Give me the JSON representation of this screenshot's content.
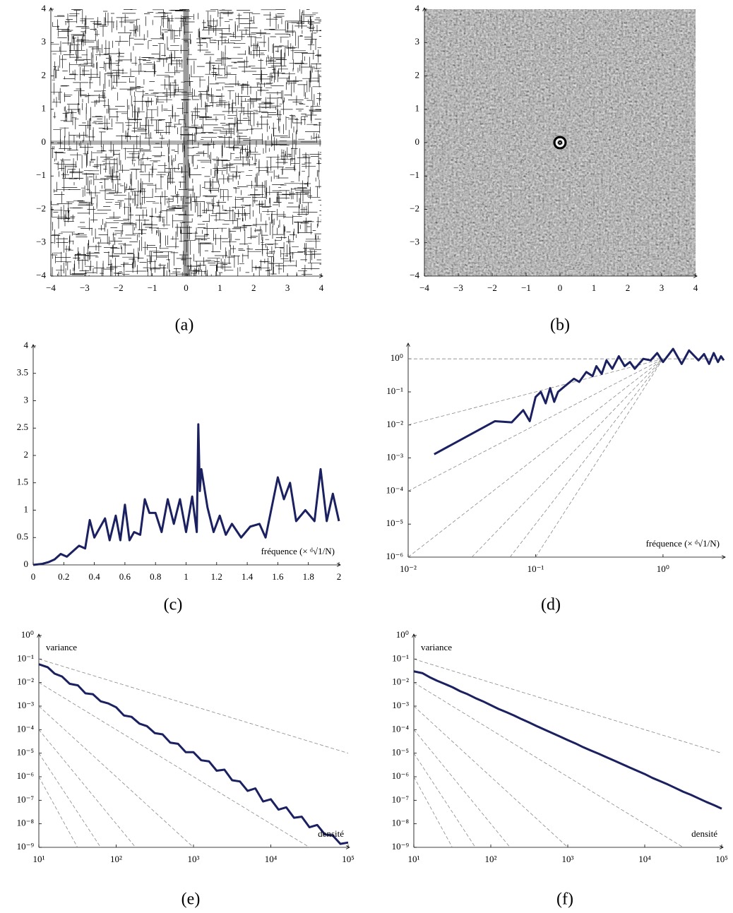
{
  "chart_data": [
    {
      "type": "image",
      "caption": "(a)",
      "pattern": "points",
      "xlim": [
        -4,
        4
      ],
      "ylim": [
        -4,
        4
      ],
      "xticks": [
        {
          "value": -4,
          "label": "−4"
        },
        {
          "value": -3,
          "label": "−3"
        },
        {
          "value": -2,
          "label": "−2"
        },
        {
          "value": -1,
          "label": "−1"
        },
        0,
        1,
        2,
        3,
        4
      ],
      "yticks": [
        {
          "value": -4,
          "label": "−4"
        },
        {
          "value": -3,
          "label": "−3"
        },
        {
          "value": -2,
          "label": "−2"
        },
        {
          "value": -1,
          "label": "−1"
        },
        0,
        1,
        2,
        3,
        4
      ]
    },
    {
      "type": "image",
      "caption": "(b)",
      "pattern": "spectrum",
      "xlim": [
        -4,
        4
      ],
      "ylim": [
        -4,
        4
      ],
      "xticks": [
        {
          "value": -4,
          "label": "−4"
        },
        {
          "value": -3,
          "label": "−3"
        },
        {
          "value": -2,
          "label": "−2"
        },
        {
          "value": -1,
          "label": "−1"
        },
        0,
        1,
        2,
        3,
        4
      ],
      "yticks": [
        {
          "value": -4,
          "label": "−4"
        },
        {
          "value": -3,
          "label": "−3"
        },
        {
          "value": -2,
          "label": "−2"
        },
        {
          "value": -1,
          "label": "−1"
        },
        0,
        1,
        2,
        3,
        4
      ]
    },
    {
      "type": "line",
      "caption": "(c)",
      "x_label": "fréquence (× ᵈ√1/N)",
      "xlim": [
        0,
        2
      ],
      "ylim": [
        0,
        4
      ],
      "xticks": [
        0,
        0.2,
        0.4,
        0.6,
        0.8,
        1,
        1.2,
        1.4,
        1.6,
        1.8,
        2
      ],
      "yticks": [
        0,
        0.5,
        1,
        1.5,
        2,
        2.5,
        3,
        3.5,
        4
      ],
      "series": [
        {
          "color": "#1b2160",
          "x": [
            0,
            0.06,
            0.1,
            0.14,
            0.18,
            0.22,
            0.26,
            0.3,
            0.34,
            0.37,
            0.4,
            0.44,
            0.47,
            0.5,
            0.54,
            0.57,
            0.6,
            0.63,
            0.66,
            0.7,
            0.73,
            0.76,
            0.8,
            0.84,
            0.88,
            0.92,
            0.96,
            1.0,
            1.04,
            1.07,
            1.08,
            1.09,
            1.1,
            1.14,
            1.18,
            1.22,
            1.26,
            1.3,
            1.36,
            1.42,
            1.48,
            1.52,
            1.6,
            1.64,
            1.68,
            1.72,
            1.78,
            1.84,
            1.88,
            1.92,
            1.96,
            2.0
          ],
          "values": [
            0,
            0.02,
            0.05,
            0.1,
            0.2,
            0.15,
            0.25,
            0.35,
            0.3,
            0.82,
            0.5,
            0.7,
            0.85,
            0.45,
            0.9,
            0.45,
            1.1,
            0.45,
            0.6,
            0.55,
            1.2,
            0.95,
            0.95,
            0.6,
            1.2,
            0.75,
            1.2,
            0.6,
            1.25,
            0.6,
            2.57,
            1.35,
            1.75,
            1.05,
            0.6,
            0.9,
            0.55,
            0.75,
            0.5,
            0.7,
            0.75,
            0.5,
            1.6,
            1.2,
            1.5,
            0.8,
            1.0,
            0.8,
            1.75,
            0.8,
            1.3,
            0.8
          ]
        }
      ]
    },
    {
      "type": "line",
      "caption": "(d)",
      "x_label": "fréquence (× ᵈ√1/N)",
      "xscale": "log",
      "yscale": "log",
      "xlim": [
        0.01,
        3
      ],
      "ylim": [
        1e-06,
        2.7
      ],
      "xticks": [
        {
          "value": 0.01,
          "label": "10⁻²"
        },
        {
          "value": 0.1,
          "label": "10⁻¹"
        },
        {
          "value": 1,
          "label": "10⁰"
        }
      ],
      "yticks": [
        {
          "value": 1e-06,
          "label": "10⁻⁶"
        },
        {
          "value": 1e-05,
          "label": "10⁻⁵"
        },
        {
          "value": 0.0001,
          "label": "10⁻⁴"
        },
        {
          "value": 0.001,
          "label": "10⁻³"
        },
        {
          "value": 0.01,
          "label": "10⁻²"
        },
        {
          "value": 0.1,
          "label": "10⁻¹"
        },
        {
          "value": 1,
          "label": "10⁰"
        }
      ],
      "series": [
        {
          "color": "#888888",
          "dashed": true,
          "x": [
            0.01,
            3
          ],
          "values": [
            1,
            1
          ]
        },
        {
          "color": "#888888",
          "dashed": true,
          "x": [
            0.01,
            1
          ],
          "values": [
            0.01,
            1
          ]
        },
        {
          "color": "#888888",
          "dashed": true,
          "x": [
            0.01,
            1
          ],
          "values": [
            0.0001,
            1
          ]
        },
        {
          "color": "#888888",
          "dashed": true,
          "x": [
            0.01,
            1
          ],
          "values": [
            1e-06,
            1
          ]
        },
        {
          "color": "#888888",
          "dashed": true,
          "x": [
            0.0316,
            1
          ],
          "values": [
            1e-06,
            1
          ]
        },
        {
          "color": "#888888",
          "dashed": true,
          "x": [
            0.063,
            1
          ],
          "values": [
            1e-06,
            1
          ]
        },
        {
          "color": "#888888",
          "dashed": true,
          "x": [
            0.1,
            1
          ],
          "values": [
            1e-06,
            1
          ]
        },
        {
          "color": "#1b2160",
          "x": [
            0.016,
            0.048,
            0.065,
            0.08,
            0.09,
            0.1,
            0.11,
            0.12,
            0.13,
            0.14,
            0.15,
            0.17,
            0.2,
            0.22,
            0.25,
            0.28,
            0.3,
            0.33,
            0.36,
            0.4,
            0.45,
            0.5,
            0.55,
            0.6,
            0.7,
            0.8,
            0.9,
            1.0,
            1.2,
            1.4,
            1.6,
            1.9,
            2.1,
            2.3,
            2.5,
            2.7,
            2.85,
            3.0
          ],
          "values": [
            0.0013,
            0.013,
            0.012,
            0.028,
            0.013,
            0.07,
            0.1,
            0.045,
            0.13,
            0.05,
            0.1,
            0.15,
            0.25,
            0.2,
            0.4,
            0.3,
            0.6,
            0.35,
            0.9,
            0.5,
            1.2,
            0.6,
            0.8,
            0.5,
            1.0,
            0.9,
            1.5,
            0.8,
            2.0,
            0.7,
            1.8,
            0.9,
            1.4,
            0.7,
            1.5,
            0.8,
            1.2,
            0.9
          ]
        }
      ]
    },
    {
      "type": "line",
      "caption": "(e)",
      "x_label": "densité",
      "y_label": "variance",
      "xscale": "log",
      "yscale": "log",
      "xlim": [
        10,
        100000
      ],
      "ylim": [
        1e-09,
        1
      ],
      "xticks": [
        {
          "value": 10,
          "label": "10¹"
        },
        {
          "value": 100,
          "label": "10²"
        },
        {
          "value": 1000,
          "label": "10³"
        },
        {
          "value": 10000,
          "label": "10⁴"
        },
        {
          "value": 100000,
          "label": "10⁵"
        }
      ],
      "yticks": [
        {
          "value": 1e-09,
          "label": "10⁻⁹"
        },
        {
          "value": 1e-08,
          "label": "10⁻⁸"
        },
        {
          "value": 1e-07,
          "label": "10⁻⁷"
        },
        {
          "value": 1e-06,
          "label": "10⁻⁶"
        },
        {
          "value": 1e-05,
          "label": "10⁻⁵"
        },
        {
          "value": 0.0001,
          "label": "10⁻⁴"
        },
        {
          "value": 0.001,
          "label": "10⁻³"
        },
        {
          "value": 0.01,
          "label": "10⁻²"
        },
        {
          "value": 0.1,
          "label": "10⁻¹"
        },
        {
          "value": 1,
          "label": "10⁰"
        }
      ],
      "series": [
        {
          "color": "#888888",
          "dashed": true,
          "x": [
            10,
            100000
          ],
          "values": [
            0.1,
            1e-05
          ]
        },
        {
          "color": "#888888",
          "dashed": true,
          "x": [
            10,
            31623
          ],
          "values": [
            0.01,
            1e-09
          ]
        },
        {
          "color": "#888888",
          "dashed": true,
          "x": [
            10,
            1000
          ],
          "values": [
            0.001,
            1e-09
          ]
        },
        {
          "color": "#888888",
          "dashed": true,
          "x": [
            10,
            178
          ],
          "values": [
            0.0001,
            1e-09
          ]
        },
        {
          "color": "#888888",
          "dashed": true,
          "x": [
            10,
            63
          ],
          "values": [
            1e-05,
            1e-09
          ]
        },
        {
          "color": "#888888",
          "dashed": true,
          "x": [
            10,
            31.6
          ],
          "values": [
            1e-06,
            1e-09
          ]
        },
        {
          "color": "#1b2160",
          "x": [
            10,
            13,
            16,
            20,
            25,
            32,
            40,
            50,
            63,
            79,
            100,
            126,
            158,
            200,
            251,
            316,
            398,
            501,
            631,
            794,
            1000,
            1259,
            1585,
            1995,
            2512,
            3162,
            3981,
            5012,
            6310,
            7943,
            10000,
            12589,
            15849,
            19953,
            25119,
            31623,
            39811,
            50119,
            63096,
            79433,
            100000
          ],
          "values": [
            0.06,
            0.045,
            0.024,
            0.018,
            0.0089,
            0.0076,
            0.0035,
            0.0032,
            0.0016,
            0.0013,
            0.00089,
            0.0004,
            0.00035,
            0.00018,
            0.00014,
            7.1e-05,
            6.3e-05,
            2.8e-05,
            2.5e-05,
            1.1e-05,
            1.1e-05,
            5e-06,
            4.5e-06,
            1.8e-06,
            2e-06,
            7.1e-07,
            6.3e-07,
            2.5e-07,
            3.2e-07,
            8.9e-08,
            1.1e-07,
            4e-08,
            5e-08,
            1.8e-08,
            2e-08,
            7.1e-09,
            8.9e-09,
            3.5e-09,
            3.2e-09,
            1.4e-09,
            1.6e-09
          ]
        }
      ]
    },
    {
      "type": "line",
      "caption": "(f)",
      "x_label": "densité",
      "y_label": "variance",
      "xscale": "log",
      "yscale": "log",
      "xlim": [
        10,
        100000
      ],
      "ylim": [
        1e-09,
        1
      ],
      "xticks": [
        {
          "value": 10,
          "label": "10¹"
        },
        {
          "value": 100,
          "label": "10²"
        },
        {
          "value": 1000,
          "label": "10³"
        },
        {
          "value": 10000,
          "label": "10⁴"
        },
        {
          "value": 100000,
          "label": "10⁵"
        }
      ],
      "yticks": [
        {
          "value": 1e-09,
          "label": "10⁻⁹"
        },
        {
          "value": 1e-08,
          "label": "10⁻⁸"
        },
        {
          "value": 1e-07,
          "label": "10⁻⁷"
        },
        {
          "value": 1e-06,
          "label": "10⁻⁶"
        },
        {
          "value": 1e-05,
          "label": "10⁻⁵"
        },
        {
          "value": 0.0001,
          "label": "10⁻⁴"
        },
        {
          "value": 0.001,
          "label": "10⁻³"
        },
        {
          "value": 0.01,
          "label": "10⁻²"
        },
        {
          "value": 0.1,
          "label": "10⁻¹"
        },
        {
          "value": 1,
          "label": "10⁰"
        }
      ],
      "series": [
        {
          "color": "#888888",
          "dashed": true,
          "x": [
            10,
            100000
          ],
          "values": [
            0.1,
            1e-05
          ]
        },
        {
          "color": "#888888",
          "dashed": true,
          "x": [
            10,
            31623
          ],
          "values": [
            0.01,
            1e-09
          ]
        },
        {
          "color": "#888888",
          "dashed": true,
          "x": [
            10,
            1000
          ],
          "values": [
            0.001,
            1e-09
          ]
        },
        {
          "color": "#888888",
          "dashed": true,
          "x": [
            10,
            178
          ],
          "values": [
            0.0001,
            1e-09
          ]
        },
        {
          "color": "#888888",
          "dashed": true,
          "x": [
            10,
            63
          ],
          "values": [
            1e-05,
            1e-09
          ]
        },
        {
          "color": "#888888",
          "dashed": true,
          "x": [
            10,
            31.6
          ],
          "values": [
            1e-06,
            1e-09
          ]
        },
        {
          "color": "#1b2160",
          "x": [
            10,
            13,
            16,
            20,
            25,
            32,
            40,
            50,
            63,
            79,
            100,
            126,
            158,
            200,
            251,
            316,
            398,
            501,
            631,
            794,
            1000,
            1259,
            1585,
            1995,
            2512,
            3162,
            3981,
            5012,
            6310,
            7943,
            10000,
            12589,
            15849,
            19953,
            25119,
            31623,
            39811,
            50119,
            63096,
            79433,
            100000
          ],
          "values": [
            0.03,
            0.025,
            0.017,
            0.012,
            0.0089,
            0.0063,
            0.0043,
            0.0032,
            0.0022,
            0.0016,
            0.0011,
            0.00076,
            0.00056,
            0.0004,
            0.00028,
            0.0002,
            0.00014,
            0.0001,
            7.1e-05,
            5.1e-05,
            3.6e-05,
            2.6e-05,
            1.8e-05,
            1.3e-05,
            9.5e-06,
            6.8e-06,
            4.9e-06,
            3.5e-06,
            2.5e-06,
            1.8e-06,
            1.3e-06,
            8.9e-07,
            6.5e-07,
            4.7e-07,
            3.3e-07,
            2.3e-07,
            1.7e-07,
            1.2e-07,
            8.5e-08,
            6.2e-08,
            4.4e-08
          ]
        }
      ]
    }
  ]
}
